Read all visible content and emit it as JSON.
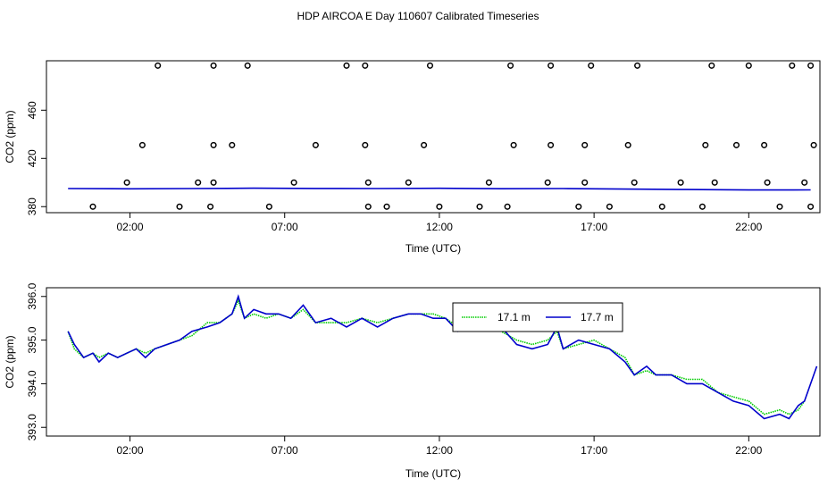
{
  "title": "HDP AIRCOA E  Day 110607  Calibrated Timeseries",
  "colors": {
    "green": "#00cc00",
    "blue": "#0000cc",
    "axis": "#000000"
  },
  "chart_data": [
    {
      "type": "scatter",
      "xlabel": "Time (UTC)",
      "ylabel": "CO2 (ppm)",
      "x_ticks": [
        "02:00",
        "07:00",
        "12:00",
        "17:00",
        "22:00"
      ],
      "x_tick_hours": [
        2,
        7,
        12,
        17,
        22
      ],
      "y_ticks": [
        "380",
        "420",
        "460"
      ],
      "y_tick_values": [
        380,
        420,
        460
      ],
      "xlim": [
        -0.7,
        24.3
      ],
      "ylim": [
        375,
        501
      ],
      "scatter_points": [
        [
          0.8,
          380
        ],
        [
          1.9,
          400
        ],
        [
          2.4,
          431
        ],
        [
          2.9,
          497
        ],
        [
          3.6,
          380
        ],
        [
          4.2,
          400
        ],
        [
          4.6,
          380
        ],
        [
          4.7,
          400
        ],
        [
          4.7,
          431
        ],
        [
          4.7,
          497
        ],
        [
          5.3,
          431
        ],
        [
          5.8,
          497
        ],
        [
          6.5,
          380
        ],
        [
          7.3,
          400
        ],
        [
          8.0,
          431
        ],
        [
          9.0,
          497
        ],
        [
          9.6,
          431
        ],
        [
          9.6,
          497
        ],
        [
          9.7,
          400
        ],
        [
          9.7,
          380
        ],
        [
          10.3,
          380
        ],
        [
          11.0,
          400
        ],
        [
          11.5,
          431
        ],
        [
          12.0,
          380
        ],
        [
          11.7,
          497
        ],
        [
          13.3,
          380
        ],
        [
          13.6,
          400
        ],
        [
          14.2,
          380
        ],
        [
          14.4,
          431
        ],
        [
          14.3,
          497
        ],
        [
          15.5,
          400
        ],
        [
          15.6,
          431
        ],
        [
          15.6,
          497
        ],
        [
          16.5,
          380
        ],
        [
          16.7,
          400
        ],
        [
          16.9,
          497
        ],
        [
          16.7,
          431
        ],
        [
          17.5,
          380
        ],
        [
          18.1,
          431
        ],
        [
          18.3,
          400
        ],
        [
          18.4,
          497
        ],
        [
          19.2,
          380
        ],
        [
          19.8,
          400
        ],
        [
          20.5,
          380
        ],
        [
          20.8,
          497
        ],
        [
          20.6,
          431
        ],
        [
          20.9,
          400
        ],
        [
          21.6,
          431
        ],
        [
          22.0,
          497
        ],
        [
          22.5,
          431
        ],
        [
          22.6,
          400
        ],
        [
          23.0,
          380
        ],
        [
          23.4,
          497
        ],
        [
          23.8,
          400
        ],
        [
          24.0,
          380
        ],
        [
          24.1,
          431
        ],
        [
          24.0,
          497
        ]
      ],
      "line_points": [
        [
          0,
          395.0
        ],
        [
          2,
          394.8
        ],
        [
          4,
          395.0
        ],
        [
          6,
          395.3
        ],
        [
          8,
          395.1
        ],
        [
          10,
          395.0
        ],
        [
          12,
          395.2
        ],
        [
          14,
          394.9
        ],
        [
          16,
          395.0
        ],
        [
          18,
          394.6
        ],
        [
          20,
          394.2
        ],
        [
          22,
          393.8
        ],
        [
          24,
          393.9
        ]
      ]
    },
    {
      "type": "line",
      "xlabel": "Time (UTC)",
      "ylabel": "CO2 (ppm)",
      "x_ticks": [
        "02:00",
        "07:00",
        "12:00",
        "17:00",
        "22:00"
      ],
      "x_tick_hours": [
        2,
        7,
        12,
        17,
        22
      ],
      "y_ticks": [
        "393.0",
        "394.0",
        "395.0",
        "396.0"
      ],
      "y_tick_values": [
        393.0,
        394.0,
        395.0,
        396.0
      ],
      "xlim": [
        -0.7,
        24.3
      ],
      "ylim": [
        392.8,
        396.2
      ],
      "legend_placement": "top-center",
      "series": [
        {
          "name": "17.1 m",
          "color": "#00cc00",
          "style": "dotted",
          "points": [
            [
              0.0,
              395.2
            ],
            [
              0.2,
              394.8
            ],
            [
              0.5,
              394.6
            ],
            [
              0.8,
              394.7
            ],
            [
              1.0,
              394.6
            ],
            [
              1.3,
              394.7
            ],
            [
              1.6,
              394.6
            ],
            [
              1.9,
              394.7
            ],
            [
              2.2,
              394.8
            ],
            [
              2.5,
              394.7
            ],
            [
              2.8,
              394.8
            ],
            [
              3.2,
              394.9
            ],
            [
              3.6,
              395.0
            ],
            [
              4.0,
              395.1
            ],
            [
              4.5,
              395.4
            ],
            [
              4.9,
              395.4
            ],
            [
              5.3,
              395.6
            ],
            [
              5.5,
              395.9
            ],
            [
              5.7,
              395.5
            ],
            [
              6.0,
              395.6
            ],
            [
              6.4,
              395.5
            ],
            [
              6.8,
              395.6
            ],
            [
              7.2,
              395.5
            ],
            [
              7.6,
              395.7
            ],
            [
              8.0,
              395.4
            ],
            [
              8.5,
              395.4
            ],
            [
              9.0,
              395.4
            ],
            [
              9.5,
              395.5
            ],
            [
              10.0,
              395.4
            ],
            [
              10.5,
              395.5
            ],
            [
              11.0,
              395.6
            ],
            [
              11.4,
              395.6
            ],
            [
              11.8,
              395.6
            ],
            [
              12.2,
              395.5
            ],
            [
              12.6,
              395.3
            ],
            [
              13.0,
              395.3
            ],
            [
              13.5,
              395.4
            ],
            [
              14.0,
              395.2
            ],
            [
              14.5,
              395.0
            ],
            [
              15.0,
              394.9
            ],
            [
              15.5,
              395.0
            ],
            [
              15.8,
              395.2
            ],
            [
              16.0,
              394.8
            ],
            [
              16.5,
              394.9
            ],
            [
              17.0,
              395.0
            ],
            [
              17.5,
              394.8
            ],
            [
              18.0,
              394.6
            ],
            [
              18.3,
              394.2
            ],
            [
              18.7,
              394.3
            ],
            [
              19.0,
              394.2
            ],
            [
              19.5,
              394.2
            ],
            [
              20.0,
              394.1
            ],
            [
              20.5,
              394.1
            ],
            [
              21.0,
              393.8
            ],
            [
              21.5,
              393.7
            ],
            [
              22.0,
              393.6
            ],
            [
              22.5,
              393.3
            ],
            [
              23.0,
              393.4
            ],
            [
              23.3,
              393.3
            ],
            [
              23.6,
              393.4
            ],
            [
              23.8,
              393.6
            ]
          ]
        },
        {
          "name": "17.7 m",
          "color": "#0000cc",
          "style": "solid",
          "points": [
            [
              0.0,
              395.2
            ],
            [
              0.2,
              394.9
            ],
            [
              0.5,
              394.6
            ],
            [
              0.8,
              394.7
            ],
            [
              1.0,
              394.5
            ],
            [
              1.3,
              394.7
            ],
            [
              1.6,
              394.6
            ],
            [
              1.9,
              394.7
            ],
            [
              2.2,
              394.8
            ],
            [
              2.5,
              394.6
            ],
            [
              2.8,
              394.8
            ],
            [
              3.2,
              394.9
            ],
            [
              3.6,
              395.0
            ],
            [
              4.0,
              395.2
            ],
            [
              4.5,
              395.3
            ],
            [
              4.9,
              395.4
            ],
            [
              5.3,
              395.6
            ],
            [
              5.5,
              396.0
            ],
            [
              5.7,
              395.5
            ],
            [
              6.0,
              395.7
            ],
            [
              6.4,
              395.6
            ],
            [
              6.8,
              395.6
            ],
            [
              7.2,
              395.5
            ],
            [
              7.6,
              395.8
            ],
            [
              8.0,
              395.4
            ],
            [
              8.5,
              395.5
            ],
            [
              9.0,
              395.3
            ],
            [
              9.5,
              395.5
            ],
            [
              10.0,
              395.3
            ],
            [
              10.5,
              395.5
            ],
            [
              11.0,
              395.6
            ],
            [
              11.4,
              395.6
            ],
            [
              11.8,
              395.5
            ],
            [
              12.2,
              395.5
            ],
            [
              12.6,
              395.2
            ],
            [
              13.0,
              395.4
            ],
            [
              13.5,
              395.3
            ],
            [
              14.0,
              395.3
            ],
            [
              14.5,
              394.9
            ],
            [
              15.0,
              394.8
            ],
            [
              15.5,
              394.9
            ],
            [
              15.8,
              395.3
            ],
            [
              16.0,
              394.8
            ],
            [
              16.5,
              395.0
            ],
            [
              17.0,
              394.9
            ],
            [
              17.5,
              394.8
            ],
            [
              18.0,
              394.5
            ],
            [
              18.3,
              394.2
            ],
            [
              18.7,
              394.4
            ],
            [
              19.0,
              394.2
            ],
            [
              19.5,
              394.2
            ],
            [
              20.0,
              394.0
            ],
            [
              20.5,
              394.0
            ],
            [
              21.0,
              393.8
            ],
            [
              21.5,
              393.6
            ],
            [
              22.0,
              393.5
            ],
            [
              22.5,
              393.2
            ],
            [
              23.0,
              393.3
            ],
            [
              23.3,
              393.2
            ],
            [
              23.6,
              393.5
            ],
            [
              23.8,
              393.6
            ],
            [
              24.0,
              394.0
            ],
            [
              24.2,
              394.4
            ]
          ]
        }
      ]
    }
  ]
}
